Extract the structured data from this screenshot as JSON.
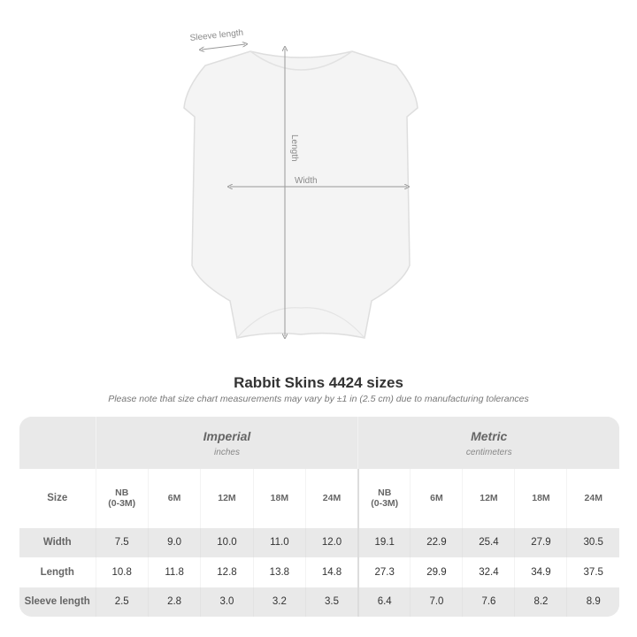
{
  "diagram": {
    "sleeve_label": "Sleeve length",
    "length_label": "Length",
    "width_label": "Width"
  },
  "title": "Rabbit Skins 4424 sizes",
  "subtitle": "Please note that size chart measurements may vary by ±1 in (2.5 cm) due to manufacturing tolerances",
  "table": {
    "imperial": {
      "label": "Imperial",
      "unit": "inches"
    },
    "metric": {
      "label": "Metric",
      "unit": "centimeters"
    },
    "size_label": "Size",
    "sizes": [
      "NB (0-3M)",
      "6M",
      "12M",
      "18M",
      "24M"
    ],
    "rows": [
      {
        "label": "Width",
        "imperial": [
          "7.5",
          "9.0",
          "10.0",
          "11.0",
          "12.0"
        ],
        "metric": [
          "19.1",
          "22.9",
          "25.4",
          "27.9",
          "30.5"
        ]
      },
      {
        "label": "Length",
        "imperial": [
          "10.8",
          "11.8",
          "12.8",
          "13.8",
          "14.8"
        ],
        "metric": [
          "27.3",
          "29.9",
          "32.4",
          "34.9",
          "37.5"
        ]
      },
      {
        "label": "Sleeve length",
        "imperial": [
          "2.5",
          "2.8",
          "3.0",
          "3.2",
          "3.5"
        ],
        "metric": [
          "6.4",
          "7.0",
          "7.6",
          "8.2",
          "8.9"
        ]
      }
    ]
  }
}
